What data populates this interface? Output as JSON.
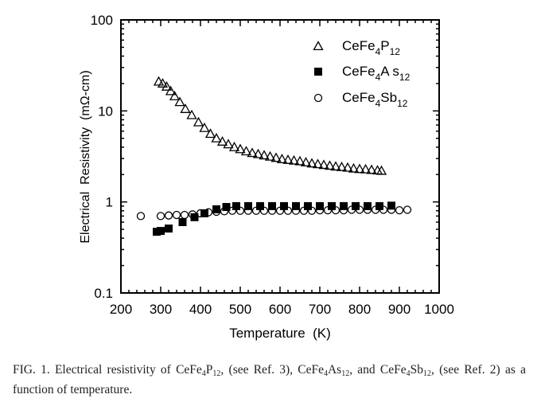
{
  "chart_data": {
    "type": "scatter",
    "xlabel": "Temperature  (K)",
    "ylabel": "Electrical  Resistivity  (mΩ-cm)",
    "xlim": [
      200,
      1000
    ],
    "ylim": [
      0.1,
      100
    ],
    "yscale": "log",
    "x_ticks": [
      200,
      300,
      400,
      500,
      600,
      700,
      800,
      900,
      1000
    ],
    "y_ticks": [
      0.1,
      1,
      10,
      100
    ],
    "y_tick_labels": [
      "0.1",
      "1",
      "10",
      "100"
    ],
    "grid": false,
    "legend_position": "top-right",
    "series": [
      {
        "name": "CeFe4P12",
        "marker": "open-triangle",
        "points": [
          [
            295,
            21
          ],
          [
            305,
            20
          ],
          [
            315,
            18.5
          ],
          [
            325,
            16.5
          ],
          [
            335,
            14.5
          ],
          [
            348,
            12.5
          ],
          [
            362,
            10.5
          ],
          [
            378,
            9
          ],
          [
            395,
            7.5
          ],
          [
            410,
            6.5
          ],
          [
            425,
            5.6
          ],
          [
            440,
            5.0
          ],
          [
            455,
            4.6
          ],
          [
            470,
            4.3
          ],
          [
            485,
            4.0
          ],
          [
            500,
            3.8
          ],
          [
            515,
            3.6
          ],
          [
            530,
            3.45
          ],
          [
            545,
            3.35
          ],
          [
            560,
            3.25
          ],
          [
            575,
            3.15
          ],
          [
            590,
            3.05
          ],
          [
            605,
            2.95
          ],
          [
            620,
            2.9
          ],
          [
            635,
            2.85
          ],
          [
            650,
            2.8
          ],
          [
            665,
            2.72
          ],
          [
            680,
            2.65
          ],
          [
            695,
            2.6
          ],
          [
            710,
            2.55
          ],
          [
            725,
            2.5
          ],
          [
            740,
            2.45
          ],
          [
            755,
            2.42
          ],
          [
            770,
            2.38
          ],
          [
            785,
            2.33
          ],
          [
            800,
            2.3
          ],
          [
            815,
            2.28
          ],
          [
            830,
            2.25
          ],
          [
            845,
            2.22
          ],
          [
            855,
            2.2
          ]
        ]
      },
      {
        "name": "CeFe4As12",
        "marker": "filled-square",
        "points": [
          [
            290,
            0.47
          ],
          [
            300,
            0.48
          ],
          [
            320,
            0.51
          ],
          [
            355,
            0.6
          ],
          [
            385,
            0.68
          ],
          [
            410,
            0.75
          ],
          [
            440,
            0.83
          ],
          [
            465,
            0.88
          ],
          [
            490,
            0.9
          ],
          [
            520,
            0.9
          ],
          [
            550,
            0.9
          ],
          [
            580,
            0.9
          ],
          [
            610,
            0.9
          ],
          [
            640,
            0.9
          ],
          [
            670,
            0.9
          ],
          [
            700,
            0.9
          ],
          [
            730,
            0.9
          ],
          [
            760,
            0.9
          ],
          [
            790,
            0.9
          ],
          [
            820,
            0.9
          ],
          [
            850,
            0.9
          ],
          [
            880,
            0.91
          ]
        ]
      },
      {
        "name": "CeFe4Sb12",
        "marker": "open-circle",
        "points": [
          [
            250,
            0.7
          ],
          [
            300,
            0.7
          ],
          [
            320,
            0.71
          ],
          [
            340,
            0.72
          ],
          [
            360,
            0.72
          ],
          [
            380,
            0.73
          ],
          [
            400,
            0.75
          ],
          [
            420,
            0.77
          ],
          [
            440,
            0.78
          ],
          [
            460,
            0.79
          ],
          [
            480,
            0.8
          ],
          [
            500,
            0.8
          ],
          [
            520,
            0.8
          ],
          [
            540,
            0.8
          ],
          [
            560,
            0.8
          ],
          [
            580,
            0.8
          ],
          [
            600,
            0.8
          ],
          [
            620,
            0.8
          ],
          [
            640,
            0.8
          ],
          [
            660,
            0.8
          ],
          [
            680,
            0.8
          ],
          [
            700,
            0.81
          ],
          [
            720,
            0.81
          ],
          [
            740,
            0.81
          ],
          [
            760,
            0.81
          ],
          [
            780,
            0.82
          ],
          [
            800,
            0.82
          ],
          [
            820,
            0.82
          ],
          [
            840,
            0.82
          ],
          [
            860,
            0.82
          ],
          [
            880,
            0.82
          ],
          [
            900,
            0.81
          ],
          [
            920,
            0.82
          ]
        ]
      }
    ],
    "legend": [
      {
        "series": 0,
        "base": "CeFe",
        "sub1": "4",
        "mid": "P",
        "sub2": "12"
      },
      {
        "series": 1,
        "base": "CeFe",
        "sub1": "4",
        "mid": "A s",
        "sub2": "12"
      },
      {
        "series": 2,
        "base": "CeFe",
        "sub1": "4",
        "mid": "Sb",
        "sub2": "12"
      }
    ]
  },
  "caption": {
    "part1": "FIG. 1. Electrical resistivity of CeFe",
    "s1": "4",
    "part2": "P",
    "s2": "12",
    "part3": ", (see Ref. 3), CeFe",
    "s3": "4",
    "part4": "As",
    "s4": "12",
    "part5": ", and CeFe",
    "s5": "4",
    "part6": "Sb",
    "s6": "12",
    "part7": ", (see Ref. 2) as a function of temperature."
  }
}
